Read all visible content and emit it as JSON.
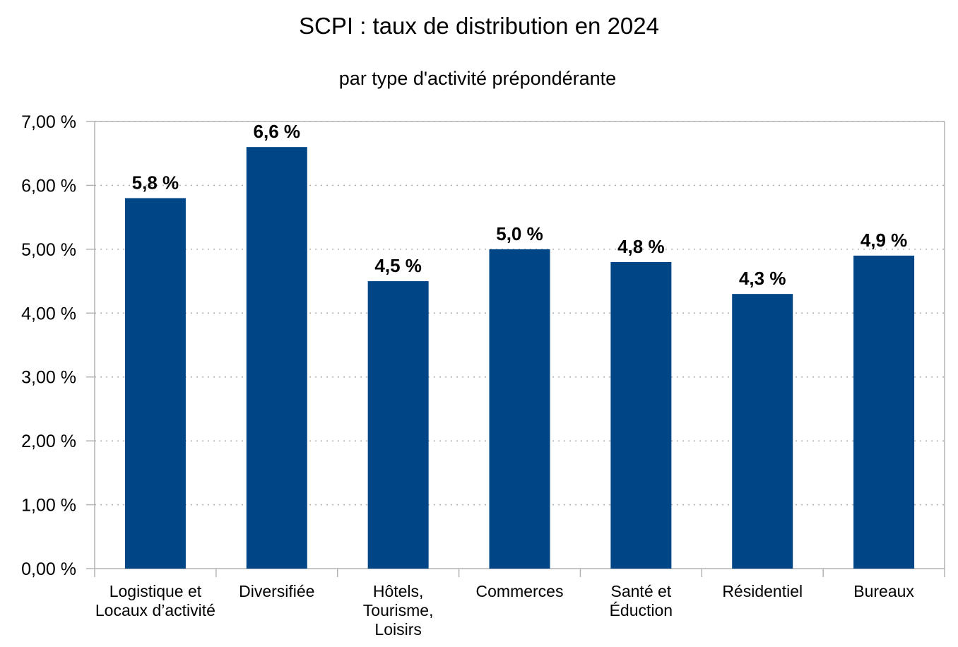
{
  "chart_data": {
    "type": "bar",
    "title": "SCPI : taux de distribution en 2024",
    "subtitle": "par type d'activité prépondérante",
    "xlabel": "",
    "ylabel": "",
    "ylim": [
      0,
      7
    ],
    "y_ticks": [
      0,
      1,
      2,
      3,
      4,
      5,
      6,
      7
    ],
    "y_tick_labels": [
      "0,00 %",
      "1,00 %",
      "2,00 %",
      "3,00 %",
      "4,00 %",
      "5,00 %",
      "6,00 %",
      "7,00 %"
    ],
    "grid": true,
    "categories": [
      [
        "Logistique et",
        "Locaux d’activité"
      ],
      [
        "Diversifiée"
      ],
      [
        "Hôtels,",
        "Tourisme,",
        "Loisirs"
      ],
      [
        "Commerces"
      ],
      [
        "Santé et",
        "Éduction"
      ],
      [
        "Résidentiel"
      ],
      [
        "Bureaux"
      ]
    ],
    "values": [
      5.8,
      6.6,
      4.5,
      5.0,
      4.8,
      4.3,
      4.9
    ],
    "data_labels": [
      "5,8 %",
      "6,6 %",
      "4,5 %",
      "5,0 %",
      "4,8 %",
      "4,3 %",
      "4,9 %"
    ],
    "colors": {
      "bar": "#004586",
      "grid": "#b3b3b3",
      "axis": "#b3b3b3",
      "text": "#000000"
    }
  }
}
